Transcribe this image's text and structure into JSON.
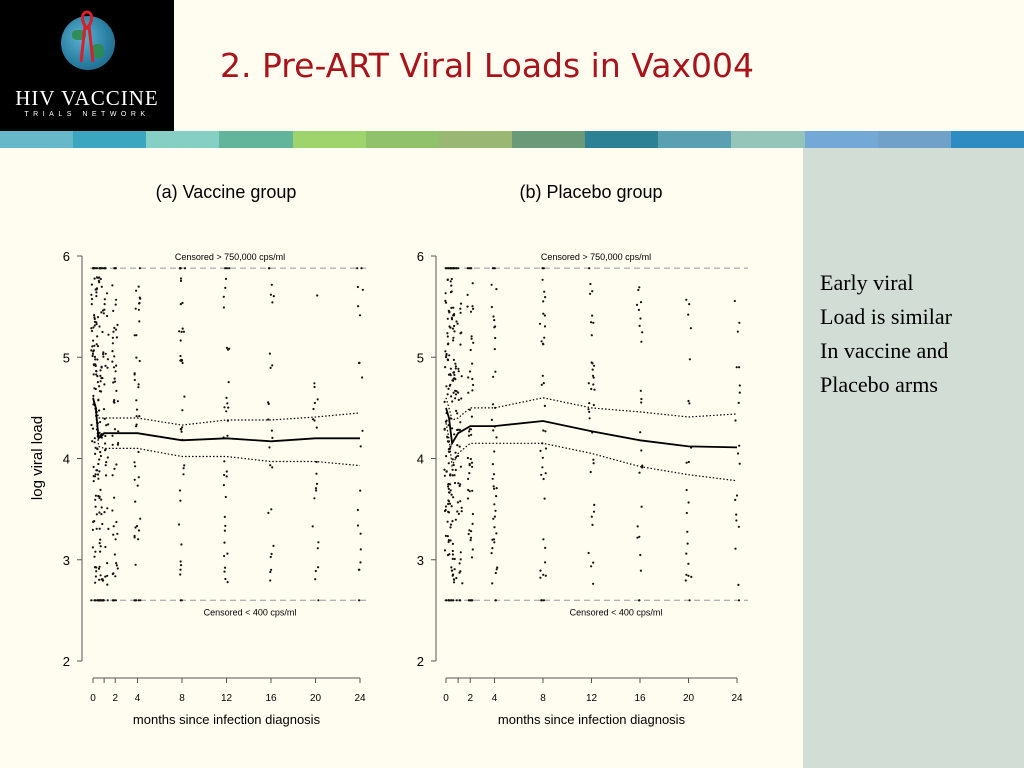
{
  "page": {
    "title": "2. Pre-ART Viral Loads in Vax004",
    "logo": {
      "name": "HIV VACCINE",
      "subtitle": "TRIALS NETWORK"
    }
  },
  "side_text": [
    "Early viral",
    "Load is similar",
    "In vaccine and",
    "Placebo arms"
  ],
  "colors": {
    "title": "#a8141c",
    "side_panel": "#d2ddd6",
    "stripe": [
      "#67b8c9",
      "#3aa6c0",
      "#86cfc4",
      "#62b49b",
      "#9fd46c",
      "#8fc26a",
      "#9ab874",
      "#6a9a78",
      "#2c8294",
      "#5b9fb3",
      "#95c4b8",
      "#74a8d6",
      "#6fa1c9",
      "#2e8cc2"
    ]
  },
  "chart_data": [
    {
      "type": "scatter",
      "title": "(a) Vaccine group",
      "xlabel": "months since infection diagnosis",
      "ylabel": "log viral load",
      "xlim": [
        0,
        24
      ],
      "ylim": [
        2,
        6
      ],
      "xticks": [
        0,
        1,
        2,
        4,
        8,
        12,
        16,
        20,
        24
      ],
      "xtick_labels": [
        "0",
        "",
        "2",
        "4",
        "8",
        "12",
        "16",
        "20",
        "24"
      ],
      "yticks": [
        2,
        3,
        4,
        5,
        6
      ],
      "censor_upper": {
        "value": 5.88,
        "label": "Censored > 750,000 cps/ml"
      },
      "censor_lower": {
        "value": 2.6,
        "label": "Censored < 400 cps/ml"
      },
      "visits": [
        0.25,
        0.5,
        1,
        2,
        4,
        8,
        12,
        16,
        20,
        24
      ],
      "series": [
        {
          "style": "solid",
          "x": [
            0,
            0.25,
            0.5,
            1,
            2,
            4,
            8,
            12,
            16,
            20,
            24
          ],
          "y": [
            4.6,
            4.5,
            4.2,
            4.25,
            4.25,
            4.25,
            4.18,
            4.2,
            4.17,
            4.2,
            4.2
          ]
        },
        {
          "style": "dotted",
          "x": [
            0,
            0.25,
            0.5,
            1,
            2,
            4,
            8,
            12,
            16,
            20,
            24
          ],
          "y": [
            4.6,
            4.52,
            4.4,
            4.4,
            4.4,
            4.4,
            4.33,
            4.38,
            4.38,
            4.41,
            4.45
          ]
        },
        {
          "style": "dotted",
          "x": [
            0,
            0.25,
            0.5,
            1,
            2,
            4,
            8,
            12,
            16,
            20,
            24
          ],
          "y": [
            4.6,
            4.45,
            4.12,
            4.1,
            4.1,
            4.1,
            4.02,
            4.02,
            3.97,
            3.97,
            3.93
          ]
        }
      ]
    },
    {
      "type": "scatter",
      "title": "(b) Placebo group",
      "xlabel": "months since infection diagnosis",
      "ylabel": "",
      "xlim": [
        0,
        24
      ],
      "ylim": [
        2,
        6
      ],
      "xticks": [
        0,
        1,
        2,
        4,
        8,
        12,
        16,
        20,
        24
      ],
      "xtick_labels": [
        "0",
        "",
        "2",
        "4",
        "8",
        "12",
        "16",
        "20",
        "24"
      ],
      "yticks": [
        2,
        3,
        4,
        5,
        6
      ],
      "censor_upper": {
        "value": 5.88,
        "label": "Censored > 750,000 cps/ml"
      },
      "censor_lower": {
        "value": 2.6,
        "label": "Censored < 400 cps/ml"
      },
      "visits": [
        0.25,
        0.5,
        1,
        2,
        4,
        8,
        12,
        16,
        20,
        24
      ],
      "series": [
        {
          "style": "solid",
          "x": [
            0,
            0.25,
            0.5,
            1,
            2,
            4,
            8,
            12,
            16,
            20,
            24
          ],
          "y": [
            4.5,
            4.4,
            4.15,
            4.25,
            4.32,
            4.32,
            4.37,
            4.27,
            4.18,
            4.12,
            4.11
          ]
        },
        {
          "style": "dotted",
          "x": [
            0,
            0.25,
            0.5,
            1,
            2,
            4,
            8,
            12,
            16,
            20,
            24
          ],
          "y": [
            4.6,
            4.5,
            4.38,
            4.4,
            4.5,
            4.5,
            4.6,
            4.5,
            4.46,
            4.41,
            4.44
          ]
        },
        {
          "style": "dotted",
          "x": [
            0,
            0.25,
            0.5,
            1,
            2,
            4,
            8,
            12,
            16,
            20,
            24
          ],
          "y": [
            4.35,
            4.2,
            3.93,
            4.05,
            4.15,
            4.15,
            4.15,
            4.05,
            3.92,
            3.84,
            3.78
          ]
        }
      ]
    }
  ]
}
